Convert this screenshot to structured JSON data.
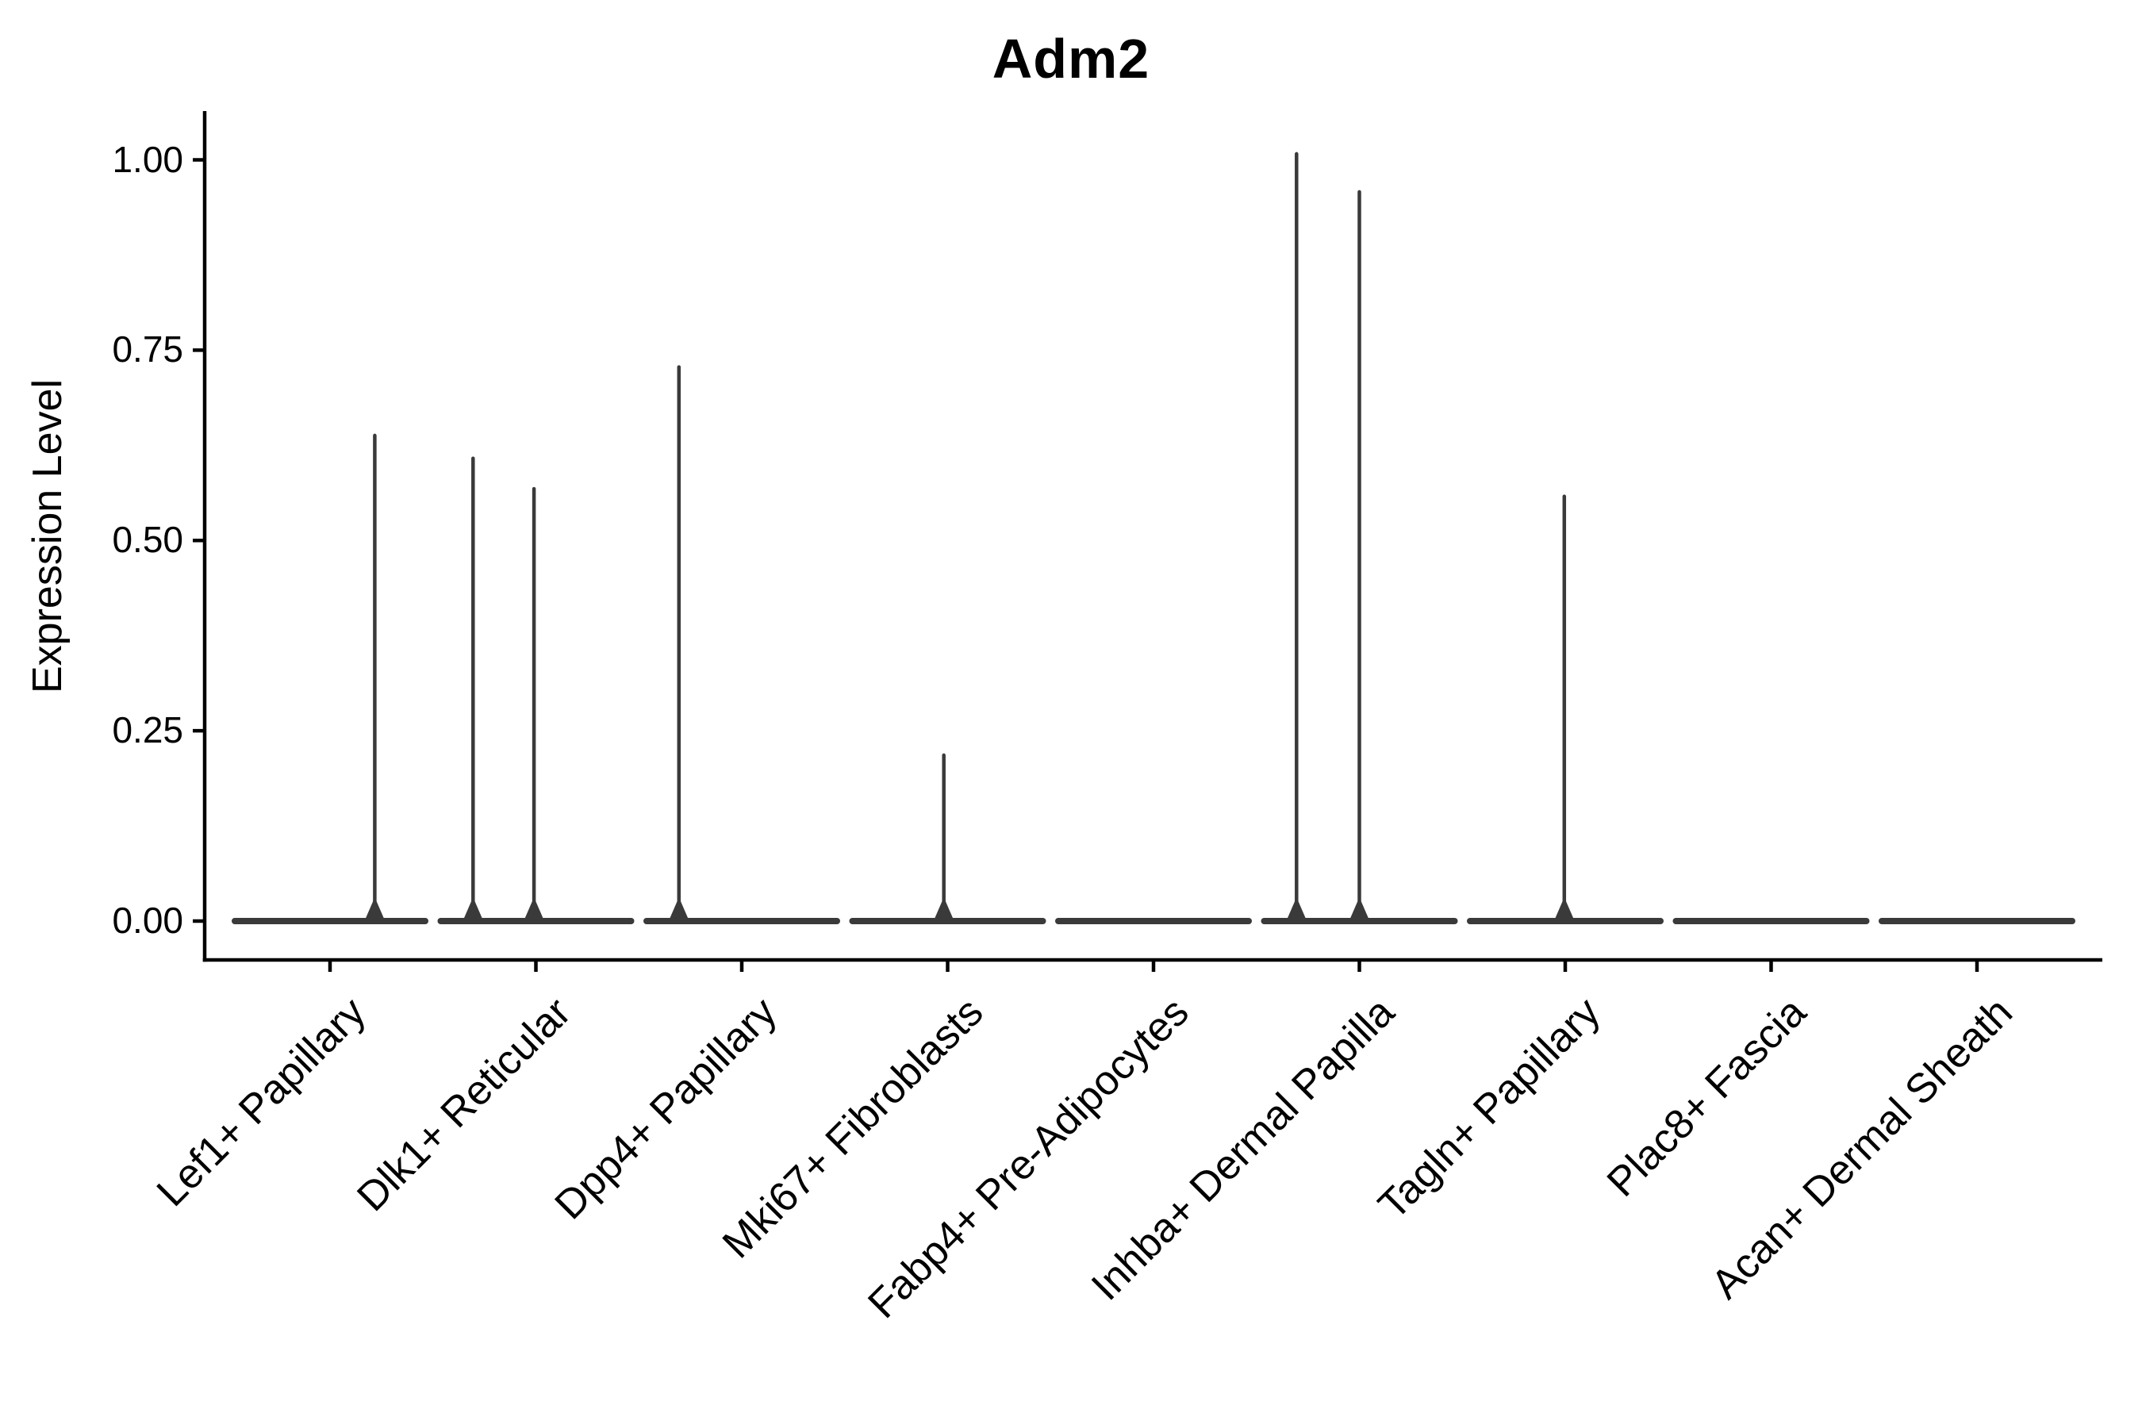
{
  "chart_data": {
    "type": "violin",
    "title": "Adm2",
    "ylabel": "Expression Level",
    "xlabel": "",
    "ylim": [
      0,
      1.06
    ],
    "grid": false,
    "legend": "none",
    "axis_color": "#000000",
    "violin_color": "#3a3a3a",
    "yticks": [
      {
        "label": "0.00",
        "value": 0.0
      },
      {
        "label": "0.25",
        "value": 0.25
      },
      {
        "label": "0.50",
        "value": 0.5
      },
      {
        "label": "0.75",
        "value": 0.75
      },
      {
        "label": "1.00",
        "value": 1.0
      }
    ],
    "baseline_value": 0.0,
    "categories": [
      {
        "label": "Lef1+ Papillary",
        "spikes": [
          {
            "value": 0.64,
            "offset": 0.47
          }
        ]
      },
      {
        "label": "Dlk1+ Reticular",
        "spikes": [
          {
            "value": 0.61,
            "offset": -0.66
          },
          {
            "value": 0.57,
            "offset": -0.02
          }
        ]
      },
      {
        "label": "Dpp4+ Papillary",
        "spikes": [
          {
            "value": 0.73,
            "offset": -0.66
          }
        ]
      },
      {
        "label": "Mki67+ Fibroblasts",
        "spikes": [
          {
            "value": 0.22,
            "offset": -0.04
          }
        ]
      },
      {
        "label": "Fabp4+ Pre-Adipocytes",
        "spikes": []
      },
      {
        "label": "Inhba+ Dermal Papilla",
        "spikes": [
          {
            "value": 1.01,
            "offset": -0.66
          },
          {
            "value": 0.96,
            "offset": 0.0
          }
        ]
      },
      {
        "label": "Tagln+ Papillary",
        "spikes": [
          {
            "value": 0.56,
            "offset": -0.01
          }
        ]
      },
      {
        "label": "Plac8+ Fascia",
        "spikes": []
      },
      {
        "label": "Acan+ Dermal Sheath",
        "spikes": []
      }
    ]
  }
}
